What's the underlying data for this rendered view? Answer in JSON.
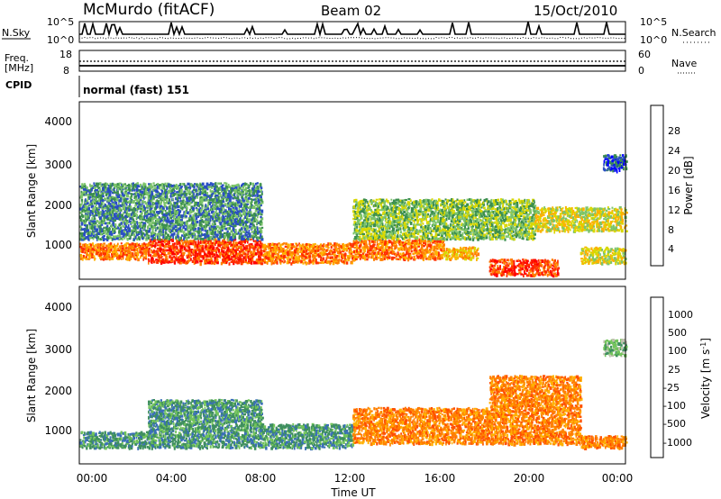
{
  "header": {
    "station": "McMurdo (fitACF)",
    "beam": "Beam 02",
    "date": "15/Oct/2010"
  },
  "noise_panel": {
    "left_label": "N.Sky",
    "right_label": "N.Search",
    "left_ticks": [
      "10^5",
      "10^0"
    ],
    "right_ticks": [
      "10^5",
      "10^0"
    ]
  },
  "freq_panel": {
    "left_label_line1": "Freq.",
    "left_label_line2": "[MHz]",
    "right_label": "Nave",
    "left_ticks": [
      "18",
      "8"
    ],
    "right_ticks": [
      "60",
      "0"
    ]
  },
  "cpid": {
    "label": "CPID",
    "value": "normal (fast) 151"
  },
  "power_panel": {
    "ylabel": "Slant Range [km]",
    "yticks": [
      "4000",
      "3000",
      "2000",
      "1000"
    ],
    "colorbar_label": "Power [dB]",
    "colorbar_ticks": [
      "28",
      "24",
      "20",
      "16",
      "12",
      "8",
      "4"
    ],
    "colors": [
      "#0000ff",
      "#2a4fc4",
      "#3c8f4f",
      "#7cc46a",
      "#d8d800",
      "#ffb000",
      "#ff8000",
      "#ff3000",
      "#ff0000"
    ]
  },
  "velocity_panel": {
    "ylabel": "Slant Range [km]",
    "yticks": [
      "4000",
      "3000",
      "2000",
      "1000"
    ],
    "colorbar_label": "Velocity [m s",
    "colorbar_label_sup": "-1",
    "colorbar_label_end": "]",
    "colorbar_ticks": [
      "1000",
      "500",
      "100",
      "25",
      "-25",
      "-100",
      "-500",
      "-1000"
    ],
    "colors": [
      "#1c3fc8",
      "#3a6fb8",
      "#3f8f5f",
      "#72c45a",
      "#c0c0b0",
      "#ffb000",
      "#ff8000",
      "#ff5000",
      "#ff0000"
    ]
  },
  "xaxis": {
    "ticks": [
      "00:00",
      "04:00",
      "08:00",
      "12:00",
      "16:00",
      "20:00",
      "00:00"
    ],
    "label": "Time UT"
  },
  "chart_data": {
    "type": "heatmap",
    "title": "McMurdo (fitACF) Beam 02 15/Oct/2010",
    "xlabel": "Time UT",
    "ylabel": "Slant Range [km]",
    "xlim": [
      "00:00",
      "24:00"
    ],
    "ylim": [
      180,
      4600
    ],
    "panels": [
      {
        "name": "Power [dB]",
        "color_scale_ticks": [
          4,
          8,
          12,
          16,
          20,
          24,
          28
        ],
        "scatter_bands": [
          {
            "t_start": 0.0,
            "t_end": 3.0,
            "r_low": 700,
            "r_high": 1100,
            "power_db": 24
          },
          {
            "t_start": 3.0,
            "t_end": 8.0,
            "r_low": 600,
            "r_high": 1200,
            "power_db": 28
          },
          {
            "t_start": 8.0,
            "t_end": 12.0,
            "r_low": 600,
            "r_high": 1100,
            "power_db": 24
          },
          {
            "t_start": 12.0,
            "t_end": 16.0,
            "r_low": 700,
            "r_high": 1200,
            "power_db": 24
          },
          {
            "t_start": 16.0,
            "t_end": 17.5,
            "r_low": 700,
            "r_high": 1000,
            "power_db": 20
          },
          {
            "t_start": 18.0,
            "t_end": 21.0,
            "r_low": 300,
            "r_high": 700,
            "power_db": 28
          },
          {
            "t_start": 0.0,
            "t_end": 8.0,
            "r_low": 1200,
            "r_high": 2600,
            "power_db": 8
          },
          {
            "t_start": 12.0,
            "t_end": 20.0,
            "r_low": 1200,
            "r_high": 2200,
            "power_db": 12
          },
          {
            "t_start": 20.0,
            "t_end": 24.0,
            "r_low": 1400,
            "r_high": 2000,
            "power_db": 16
          },
          {
            "t_start": 22.0,
            "t_end": 24.0,
            "r_low": 600,
            "r_high": 1000,
            "power_db": 16
          },
          {
            "t_start": 23.0,
            "t_end": 24.0,
            "r_low": 2900,
            "r_high": 3300,
            "power_db": 4
          }
        ]
      },
      {
        "name": "Velocity [m s-1]",
        "color_scale_ticks": [
          -1000,
          -500,
          -100,
          -25,
          25,
          100,
          500,
          1000
        ],
        "scatter_bands": [
          {
            "t_start": 0.0,
            "t_end": 3.0,
            "r_low": 600,
            "r_high": 1000,
            "velocity": 100
          },
          {
            "t_start": 3.0,
            "t_end": 8.0,
            "r_low": 600,
            "r_high": 1800,
            "velocity": 100
          },
          {
            "t_start": 8.0,
            "t_end": 12.0,
            "r_low": 600,
            "r_high": 1200,
            "velocity": 100
          },
          {
            "t_start": 12.0,
            "t_end": 18.0,
            "r_low": 700,
            "r_high": 1600,
            "velocity": -500
          },
          {
            "t_start": 18.0,
            "t_end": 22.0,
            "r_low": 700,
            "r_high": 2400,
            "velocity": -500
          },
          {
            "t_start": 22.0,
            "t_end": 24.0,
            "r_low": 600,
            "r_high": 900,
            "velocity": -500
          },
          {
            "t_start": 23.0,
            "t_end": 24.0,
            "r_low": 2900,
            "r_high": 3300,
            "velocity": 25
          }
        ]
      }
    ],
    "grid": false
  }
}
